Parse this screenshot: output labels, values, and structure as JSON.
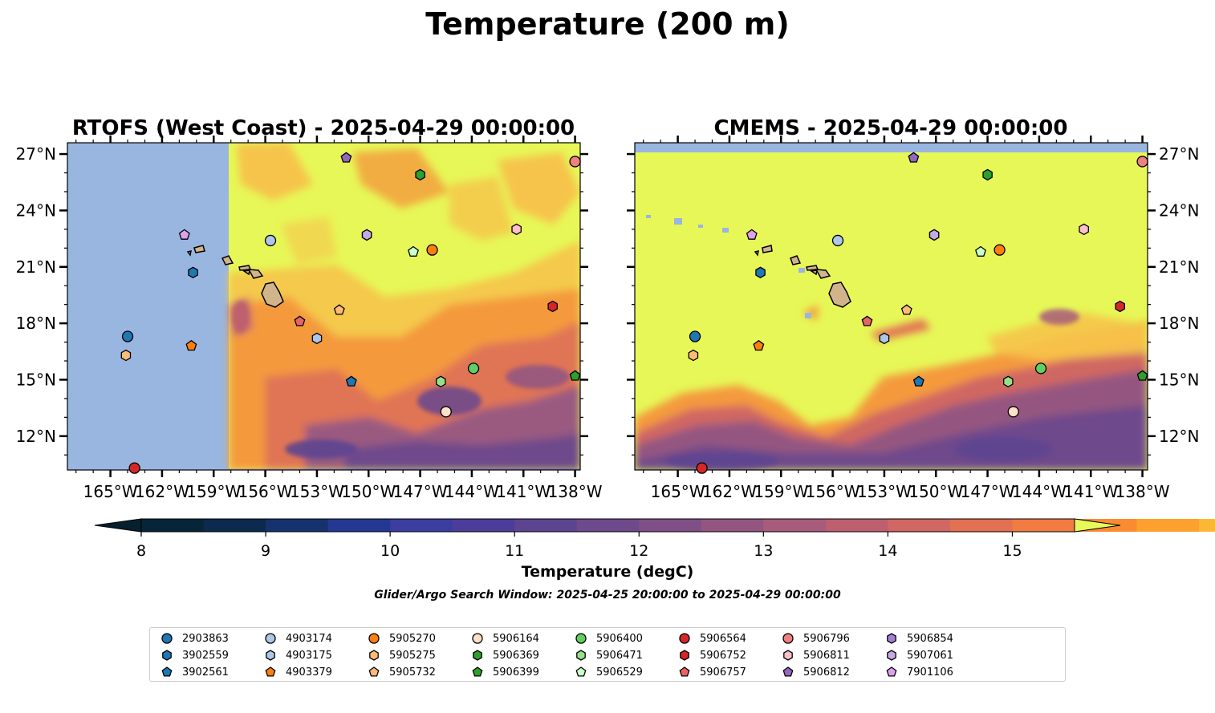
{
  "suptitle": "Temperature (200 m)",
  "chart_data": [
    {
      "type": "heatmap",
      "title": "RTOFS (West Coast) - 2025-04-29 00:00:00",
      "field": "temperature at 200 m (filled contours); RTOFS West Coast domain begins near 157.5°W, area west of it is outside the domain",
      "xlim": [
        -167.5,
        -137.7
      ],
      "ylim": [
        10.2,
        27.6
      ],
      "xticks": [
        "165°W",
        "162°W",
        "159°W",
        "156°W",
        "153°W",
        "150°W",
        "147°W",
        "144°W",
        "141°W",
        "138°W"
      ],
      "yticks": [
        "27°N",
        "24°N",
        "21°N",
        "18°N",
        "15°N",
        "12°N"
      ],
      "ytick_side": "left"
    },
    {
      "type": "heatmap",
      "title": "CMEMS - 2025-04-29 00:00:00",
      "field": "temperature at 200 m (filled contours)",
      "xlim": [
        -167.5,
        -137.7
      ],
      "ylim": [
        10.2,
        27.6
      ],
      "xticks": [
        "165°W",
        "162°W",
        "159°W",
        "156°W",
        "153°W",
        "150°W",
        "147°W",
        "144°W",
        "141°W",
        "138°W"
      ],
      "yticks": [
        "27°N",
        "24°N",
        "21°N",
        "18°N",
        "15°N",
        "12°N"
      ],
      "ytick_side": "right"
    }
  ],
  "floats": [
    {
      "id": "2903863",
      "lon": -164.0,
      "lat": 17.3,
      "color": "#1f77b4",
      "marker": "circle"
    },
    {
      "id": "3902559",
      "lon": -160.2,
      "lat": 20.7,
      "color": "#1f77b4",
      "marker": "hexagon"
    },
    {
      "id": "3902561",
      "lon": -151.0,
      "lat": 14.9,
      "color": "#1f77b4",
      "marker": "pentagon"
    },
    {
      "id": "4903174",
      "lon": -155.7,
      "lat": 22.4,
      "color": "#aec7e8",
      "marker": "circle"
    },
    {
      "id": "4903175",
      "lon": -153.0,
      "lat": 17.2,
      "color": "#aec7e8",
      "marker": "hexagon"
    },
    {
      "id": "4903379",
      "lon": -160.3,
      "lat": 16.8,
      "color": "#ff7f0e",
      "marker": "pentagon"
    },
    {
      "id": "5905270",
      "lon": -146.3,
      "lat": 21.9,
      "color": "#ff7f0e",
      "marker": "circle"
    },
    {
      "id": "5905275",
      "lon": -164.1,
      "lat": 16.3,
      "color": "#ffbb78",
      "marker": "hexagon"
    },
    {
      "id": "5905732",
      "lon": -151.7,
      "lat": 18.7,
      "color": "#ffbb78",
      "marker": "pentagon"
    },
    {
      "id": "5906164",
      "lon": -145.5,
      "lat": 13.3,
      "color": "#ffe0c8",
      "marker": "circle"
    },
    {
      "id": "5906369",
      "lon": -147.0,
      "lat": 25.9,
      "color": "#2ca02c",
      "marker": "hexagon"
    },
    {
      "id": "5906399",
      "lon": -138.0,
      "lat": 15.2,
      "color": "#2ca02c",
      "marker": "pentagon"
    },
    {
      "id": "5906400",
      "lon": -143.9,
      "lat": 15.6,
      "color": "#5fcf5f",
      "marker": "circle"
    },
    {
      "id": "5906471",
      "lon": -145.8,
      "lat": 14.9,
      "color": "#98df8a",
      "marker": "hexagon"
    },
    {
      "id": "5906529",
      "lon": -147.4,
      "lat": 21.8,
      "color": "#ccffcc",
      "marker": "pentagon"
    },
    {
      "id": "5906564",
      "lon": -163.6,
      "lat": 10.3,
      "color": "#d62728",
      "marker": "circle"
    },
    {
      "id": "5906752",
      "lon": -139.3,
      "lat": 18.9,
      "color": "#d62728",
      "marker": "hexagon"
    },
    {
      "id": "5906757",
      "lon": -154.0,
      "lat": 18.1,
      "color": "#e86464",
      "marker": "pentagon"
    },
    {
      "id": "5906796",
      "lon": -138.0,
      "lat": 26.6,
      "color": "#f08080",
      "marker": "circle"
    },
    {
      "id": "5906811",
      "lon": -141.4,
      "lat": 23.0,
      "color": "#ffc0cb",
      "marker": "hexagon"
    },
    {
      "id": "5906812",
      "lon": -151.3,
      "lat": 26.8,
      "color": "#9467bd",
      "marker": "pentagon"
    },
    {
      "id": "5906854",
      "lon": -150.1,
      "lat": 22.7,
      "color": "#a57fd4",
      "marker": "hexagon"
    },
    {
      "id": "5907061",
      "lon": -150.1,
      "lat": 22.7,
      "color": "#c5a8e8",
      "marker": "hexagon"
    },
    {
      "id": "7901106",
      "lon": -160.7,
      "lat": 22.7,
      "color": "#dda0ee",
      "marker": "pentagon"
    }
  ],
  "legend_ids": [
    "2903863",
    "3902559",
    "3902561",
    "4903174",
    "4903175",
    "4903379",
    "5905270",
    "5905275",
    "5905732",
    "5906164",
    "5906369",
    "5906399",
    "5906400",
    "5906471",
    "5906529",
    "5906564",
    "5906752",
    "5906757",
    "5906796",
    "5906811",
    "5906812",
    "5906854",
    "5907061",
    "7901106"
  ],
  "colorbar": {
    "label": "Temperature (degC)",
    "min": 8,
    "max": 15.5,
    "step": 0.5,
    "ticks": [
      8,
      9,
      10,
      11,
      12,
      13,
      14,
      15
    ],
    "extend": "both",
    "colors": [
      "#062538",
      "#0b2a4e",
      "#15326e",
      "#243893",
      "#3c3da1",
      "#4c3d9a",
      "#5d4491",
      "#6e4a8c",
      "#804f86",
      "#945680",
      "#a85b7a",
      "#bd5f6f",
      "#d06762",
      "#e27052",
      "#f07c41",
      "#fa8b31",
      "#fda02d",
      "#fbb835",
      "#f6d243",
      "#eae856"
    ],
    "under_color": "#06202d",
    "over_color": "#e8fa5b"
  },
  "colors": {
    "land": "#d2b48c",
    "ocean_nodata": "#98b6e0",
    "warm": "#e7f757"
  },
  "search_window": "Glider/Argo Search Window: 2025-04-25 20:00:00 to 2025-04-29 00:00:00"
}
